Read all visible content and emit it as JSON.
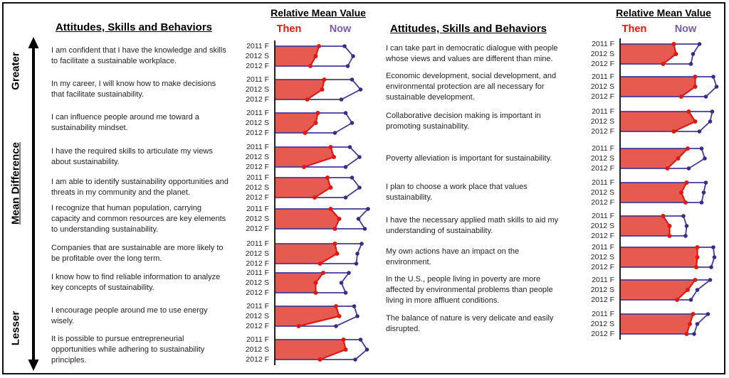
{
  "figure": {
    "axis_label_top": "Greater",
    "axis_label_mid": "Mean Difference",
    "axis_label_bottom": "Lesser"
  },
  "colors": {
    "then_text": "#E8140C",
    "now_text": "#7A5BA8",
    "then_fill": "#E65A50",
    "then_stroke": "#E3170F",
    "now_stroke": "#453A96",
    "now_dot": "#372D87",
    "axis": "#222222"
  },
  "panels": [
    {
      "heading": "Attitudes, Skills and Behaviors",
      "chart_title": "Relative Mean Value",
      "then_label": "Then",
      "now_label": "Now"
    },
    {
      "heading": "Attitudes, Skills and Behaviors",
      "chart_title": "Relative Mean Value",
      "then_label": "Then",
      "now_label": "Now"
    }
  ],
  "chart_data": [
    {
      "type": "line",
      "title": "Relative Mean Value",
      "legend": [
        "Then",
        "Now"
      ],
      "legend_position": "top",
      "categories": [
        "2011 F",
        "2012 S",
        "2012 F"
      ],
      "x_axis": "relative mean value, unlabeled; values are fractions of chart width (0-1), estimated from pixels",
      "y_axis_annotation": "Mean Difference arrow: Greater (top) to Lesser (bottom)",
      "grid": false,
      "statements": [
        {
          "text": "I am confident that I have the knowledge and skills to facilitate a sustainable workplace.",
          "then": [
            0.4,
            0.37,
            0.32
          ],
          "now": [
            0.64,
            0.72,
            0.67
          ]
        },
        {
          "text": "In my career, I will know how to make decisions that facilitate sustainability.",
          "then": [
            0.45,
            0.43,
            0.29
          ],
          "now": [
            0.71,
            0.79,
            0.61
          ]
        },
        {
          "text": "I can influence people around me toward a sustainability mindset.",
          "then": [
            0.39,
            0.37,
            0.27
          ],
          "now": [
            0.65,
            0.71,
            0.55
          ]
        },
        {
          "text": "I have the required skills to articulate my views about sustainability.",
          "then": [
            0.51,
            0.54,
            0.26
          ],
          "now": [
            0.69,
            0.78,
            0.65
          ]
        },
        {
          "text": "I am able to identify sustainability opportunities and threats in my community and the planet.",
          "then": [
            0.48,
            0.51,
            0.36
          ],
          "now": [
            0.71,
            0.78,
            0.65
          ]
        },
        {
          "text": "I recognize that human population, carrying capacity and common resources are key elements to understanding sustainability.",
          "then": [
            0.51,
            0.59,
            0.55
          ],
          "now": [
            0.86,
            0.77,
            0.83
          ]
        },
        {
          "text": "Companies that are sustainable are more likely to be profitable over the long term.",
          "then": [
            0.55,
            0.57,
            0.41
          ],
          "now": [
            0.8,
            0.76,
            0.75
          ]
        },
        {
          "text": "I know how to find reliable information to analyze key concepts of sustainability.",
          "then": [
            0.44,
            0.37,
            0.37
          ],
          "now": [
            0.68,
            0.61,
            0.65
          ]
        },
        {
          "text": "I encourage people around me to use energy wisely.",
          "then": [
            0.56,
            0.59,
            0.21
          ],
          "now": [
            0.73,
            0.76,
            0.56
          ]
        },
        {
          "text": "It is possible to pursue entrepreneurial opportunities while adhering to sustainability principles.",
          "then": [
            0.63,
            0.65,
            0.41
          ],
          "now": [
            0.79,
            0.85,
            0.74
          ]
        }
      ]
    },
    {
      "type": "line",
      "title": "Relative Mean Value",
      "legend": [
        "Then",
        "Now"
      ],
      "legend_position": "top",
      "categories": [
        "2011 F",
        "2012 S",
        "2012 F"
      ],
      "x_axis": "relative mean value, unlabeled; values are fractions of chart width (0-1), estimated from pixels",
      "grid": false,
      "statements": [
        {
          "text": "I can take part in democratic dialogue with people whose views and values are different than mine.",
          "then": [
            0.49,
            0.51,
            0.39
          ],
          "now": [
            0.73,
            0.67,
            0.65
          ]
        },
        {
          "text": "Economic development, social development, and environmental protection are all necessary for sustainable development.",
          "then": [
            0.69,
            0.69,
            0.56
          ],
          "now": [
            0.86,
            0.89,
            0.79
          ]
        },
        {
          "text": "Collaborative decision making is important in promoting sustainability.",
          "then": [
            0.63,
            0.69,
            0.49
          ],
          "now": [
            0.85,
            0.83,
            0.73
          ]
        },
        {
          "text": "Poverty alleviation is important for sustainability.",
          "then": [
            0.62,
            0.53,
            0.43
          ],
          "now": [
            0.75,
            0.78,
            0.63
          ]
        },
        {
          "text": "I plan to choose a work place that values sustainability.",
          "then": [
            0.61,
            0.56,
            0.6
          ],
          "now": [
            0.79,
            0.77,
            0.75
          ]
        },
        {
          "text": "I have the necessary applied math skills to aid my understanding of sustainability.",
          "then": [
            0.39,
            0.45,
            0.45
          ],
          "now": [
            0.58,
            0.61,
            0.6
          ]
        },
        {
          "text": "My own actions have an impact on the environment.",
          "then": [
            0.71,
            0.71,
            0.7
          ],
          "now": [
            0.86,
            0.87,
            0.84
          ]
        },
        {
          "text": "In the U.S., people living in poverty are more affected by environmental problems than people living in more affluent conditions.",
          "then": [
            0.69,
            0.62,
            0.52
          ],
          "now": [
            0.83,
            0.71,
            0.65
          ]
        },
        {
          "text": "The balance of nature is very delicate and easily disrupted.",
          "then": [
            0.67,
            0.64,
            0.61
          ],
          "now": [
            0.81,
            0.71,
            0.68
          ]
        }
      ]
    }
  ]
}
